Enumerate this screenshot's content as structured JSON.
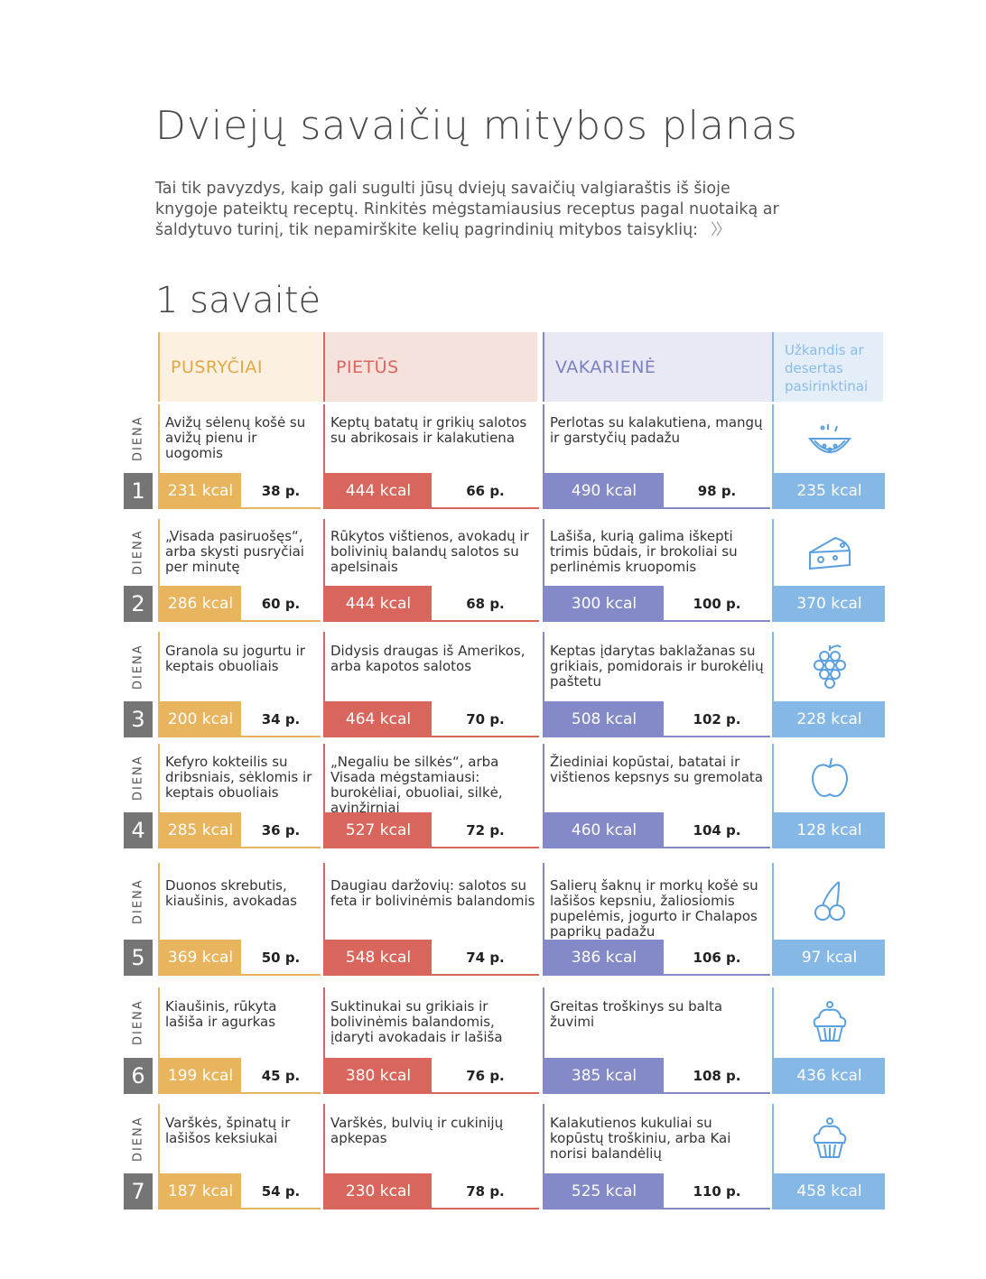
{
  "title": "Dviejų savaičių mitybos planas",
  "intro": {
    "text": "Tai tik pavyzdys, kaip gali sugulti jūsų dviejų savaičių valgiaraštis iš šioje knygoje pateiktų receptų. Rinkitės mėgstamiausius receptus pagal nuotaiką ar šaldytuvo turinį, tik nepamirškite kelių pagrindinių mitybos taisyklių:",
    "arrow": "〉〉"
  },
  "week_title": "1 savaitė",
  "headers": {
    "breakfast": "PUSRYČIAI",
    "lunch": "PIETŪS",
    "dinner": "VAKARIENĖ",
    "snack": "Užkandis ar desertas pasirinktinai"
  },
  "day_label": "DIENA",
  "days": [
    {
      "num": "1",
      "breakfast": {
        "text": "Avižų sėlenų košė su avižų pienu ir uogomis",
        "kcal": "231 kcal",
        "page": "38 p."
      },
      "lunch": {
        "text": "Keptų batatų ir grikių salotos su abrikosais ir kalakutiena",
        "kcal": "444 kcal",
        "page": "66 p."
      },
      "dinner": {
        "text": "Perlotas su kalakutiena, mangų ir garstyčių padažu",
        "kcal": "490 kcal",
        "page": "98 p."
      },
      "snack": {
        "icon": "watermelon-icon",
        "kcal": "235 kcal"
      }
    },
    {
      "num": "2",
      "breakfast": {
        "text": "„Visada pasiruošęs“, arba skysti pusryčiai per minutę",
        "kcal": "286 kcal",
        "page": "60 p."
      },
      "lunch": {
        "text": "Rūkytos vištienos, avokadų ir bolivinių balandų salotos su apelsinais",
        "kcal": "444 kcal",
        "page": "68 p."
      },
      "dinner": {
        "text": "Lašiša, kurią galima iškepti trimis būdais, ir brokoliai su perlinėmis kruopomis",
        "kcal": "300 kcal",
        "page": "100 p."
      },
      "snack": {
        "icon": "cheese-icon",
        "kcal": "370 kcal"
      }
    },
    {
      "num": "3",
      "breakfast": {
        "text": "Granola su jogurtu ir keptais obuoliais",
        "kcal": "200 kcal",
        "page": "34 p."
      },
      "lunch": {
        "text": "Didysis draugas iš Amerikos, arba kapotos salotos",
        "kcal": "464 kcal",
        "page": "70 p."
      },
      "dinner": {
        "text": "Keptas įdarytas baklažanas su grikiais, pomidorais ir burokėlių paštetu",
        "kcal": "508 kcal",
        "page": "102 p."
      },
      "snack": {
        "icon": "grapes-icon",
        "kcal": "228 kcal"
      }
    },
    {
      "num": "4",
      "breakfast": {
        "text": "Kefyro kokteilis su dribsniais, sėklomis ir keptais obuoliais",
        "kcal": "285 kcal",
        "page": "36 p."
      },
      "lunch": {
        "text": "„Negaliu be silkės“, arba Visada mėgstamiausi: burokėliai, obuoliai, silkė, avinžirniai",
        "kcal": "527 kcal",
        "page": "72 p."
      },
      "dinner": {
        "text": "Žiediniai kopūstai, batatai ir vištienos kepsnys su gremolata",
        "kcal": "460 kcal",
        "page": "104 p."
      },
      "snack": {
        "icon": "apple-icon",
        "kcal": "128 kcal"
      }
    },
    {
      "num": "5",
      "breakfast": {
        "text": "Duonos skrebutis, kiaušinis, avokadas",
        "kcal": "369 kcal",
        "page": "50 p."
      },
      "lunch": {
        "text": "Daugiau daržovių: salotos su feta ir bolivinėmis balandomis",
        "kcal": "548 kcal",
        "page": "74 p."
      },
      "dinner": {
        "text": "Salierų šaknų ir morkų košė su lašišos kepsniu, žaliosiomis pupelėmis, jogurto ir Chalapos paprikų padažu",
        "kcal": "386 kcal",
        "page": "106 p."
      },
      "snack": {
        "icon": "cherries-icon",
        "kcal": "97 kcal"
      }
    },
    {
      "num": "6",
      "breakfast": {
        "text": "Kiaušinis, rūkyta lašiša ir agurkas",
        "kcal": "199 kcal",
        "page": "45 p."
      },
      "lunch": {
        "text": "Suktinukai su grikiais ir bolivinėmis balandomis, įdaryti avokadais ir lašiša",
        "kcal": "380 kcal",
        "page": "76 p."
      },
      "dinner": {
        "text": "Greitas troškinys su balta žuvimi",
        "kcal": "385 kcal",
        "page": "108 p."
      },
      "snack": {
        "icon": "cupcake-icon",
        "kcal": "436 kcal"
      }
    },
    {
      "num": "7",
      "breakfast": {
        "text": "Varškės, špinatų ir lašišos keksiukai",
        "kcal": "187 kcal",
        "page": "54 p."
      },
      "lunch": {
        "text": "Varškės, bulvių ir cukinijų apkepas",
        "kcal": "230 kcal",
        "page": "78 p."
      },
      "dinner": {
        "text": "Kalakutienos kukuliai su kopūstų troškiniu, arba Kai norisi balandėlių",
        "kcal": "525 kcal",
        "page": "110 p."
      },
      "snack": {
        "icon": "cupcake-icon",
        "kcal": "458 kcal"
      }
    }
  ]
}
